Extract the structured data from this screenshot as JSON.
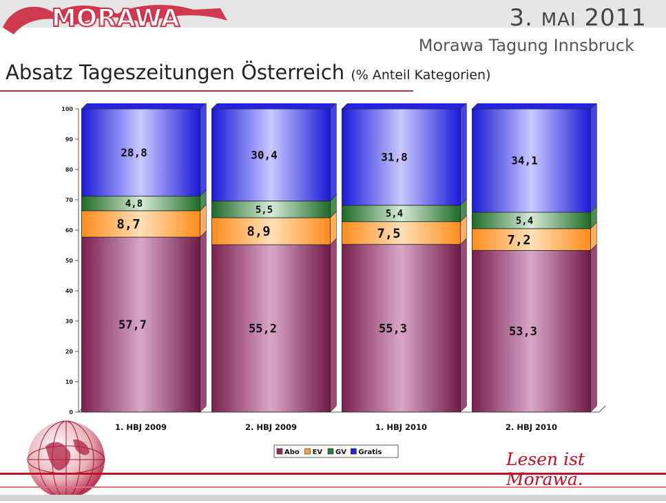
{
  "header": {
    "logo_text": "MORAWA",
    "date_prefix": "3.",
    "date_month": "MAI",
    "date_year": "2011",
    "event": "Morawa Tagung Innsbruck"
  },
  "slide": {
    "title": "Absatz Tageszeitungen Österreich",
    "subtitle": "(% Anteil Kategorien)"
  },
  "chart_data": {
    "type": "bar",
    "stacked": true,
    "categories": [
      "1. HBJ 2009",
      "2. HBJ 2009",
      "1. HBJ 2010",
      "2. HBJ 2010"
    ],
    "series": [
      {
        "name": "Abo",
        "values": [
          57.7,
          55.2,
          55.3,
          53.3
        ],
        "labels": [
          "57,7",
          "55,2",
          "55,3",
          "53,3"
        ]
      },
      {
        "name": "EV",
        "values": [
          8.7,
          8.9,
          7.5,
          7.2
        ],
        "labels": [
          "8,7",
          "8,9",
          "7,5",
          "7,2"
        ]
      },
      {
        "name": "GV",
        "values": [
          4.8,
          5.5,
          5.4,
          5.4
        ],
        "labels": [
          "4,8",
          "5,5",
          "5,4",
          "5,4"
        ]
      },
      {
        "name": "Gratis",
        "values": [
          28.8,
          30.4,
          31.8,
          34.1
        ],
        "labels": [
          "28,8",
          "30,4",
          "31,8",
          "34,1"
        ]
      }
    ],
    "yticks": [
      "0",
      "10",
      "20",
      "30",
      "40",
      "50",
      "60",
      "70",
      "80",
      "90",
      "100"
    ],
    "ylim": [
      0,
      100
    ],
    "legend_position": "bottom",
    "colors": {
      "Abo": "#8b2a5e",
      "EV": "#ffa040",
      "GV": "#2e7a36",
      "Gratis": "#2424e0"
    }
  },
  "footer": {
    "tagline": "Lesen ist Morawa."
  }
}
